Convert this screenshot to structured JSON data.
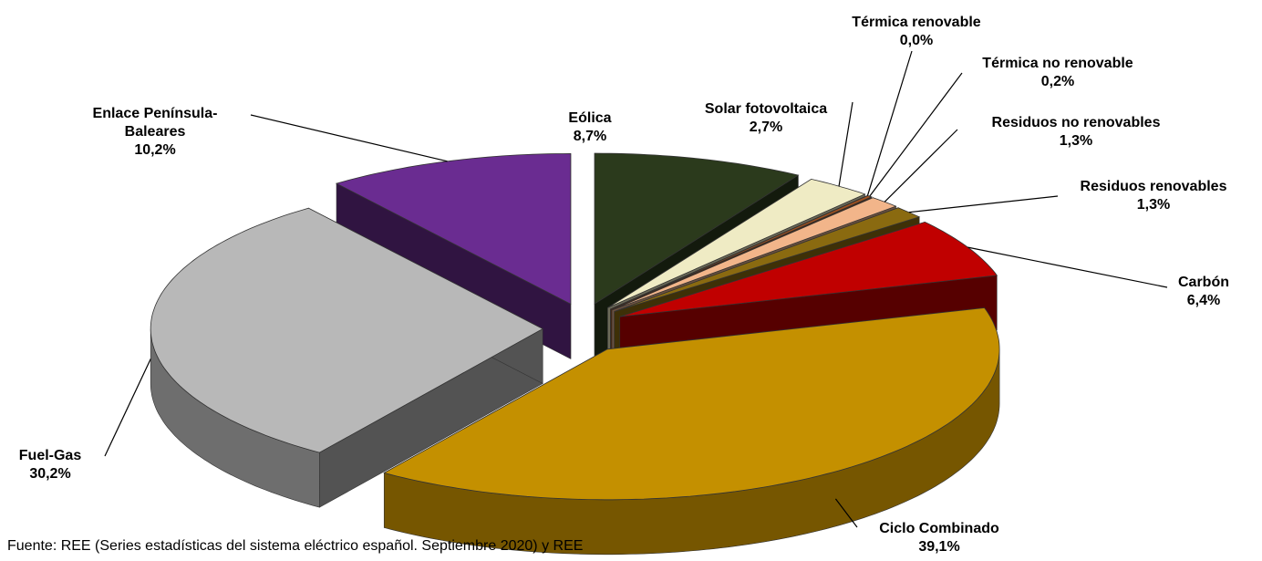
{
  "chart_data": {
    "type": "pie",
    "categories": [
      "Eólica",
      "Solar fotovoltaica",
      "Térmica renovable",
      "Térmica no renovable",
      "Residuos no renovables",
      "Residuos renovables",
      "Carbón",
      "Ciclo Combinado",
      "Fuel-Gas",
      "Enlace Península-Baleares"
    ],
    "values": [
      8.7,
      2.7,
      0.0,
      0.2,
      1.3,
      1.3,
      6.4,
      39.1,
      30.2,
      10.2
    ],
    "value_labels": [
      "8,7%",
      "2,7%",
      "0,0%",
      "0,2%",
      "1,3%",
      "1,3%",
      "6,4%",
      "39,1%",
      "30,2%",
      "10,2%"
    ],
    "colors": [
      "#2b3a1c",
      "#efebc4",
      "#7a3a10",
      "#a0501e",
      "#f2b58a",
      "#8a6a10",
      "#c00000",
      "#c49000",
      "#b8b8b8",
      "#6a2c91"
    ],
    "source": "Fuente: REE (Series estadísticas del sistema eléctrico español. Septiembre 2020) y REE"
  }
}
